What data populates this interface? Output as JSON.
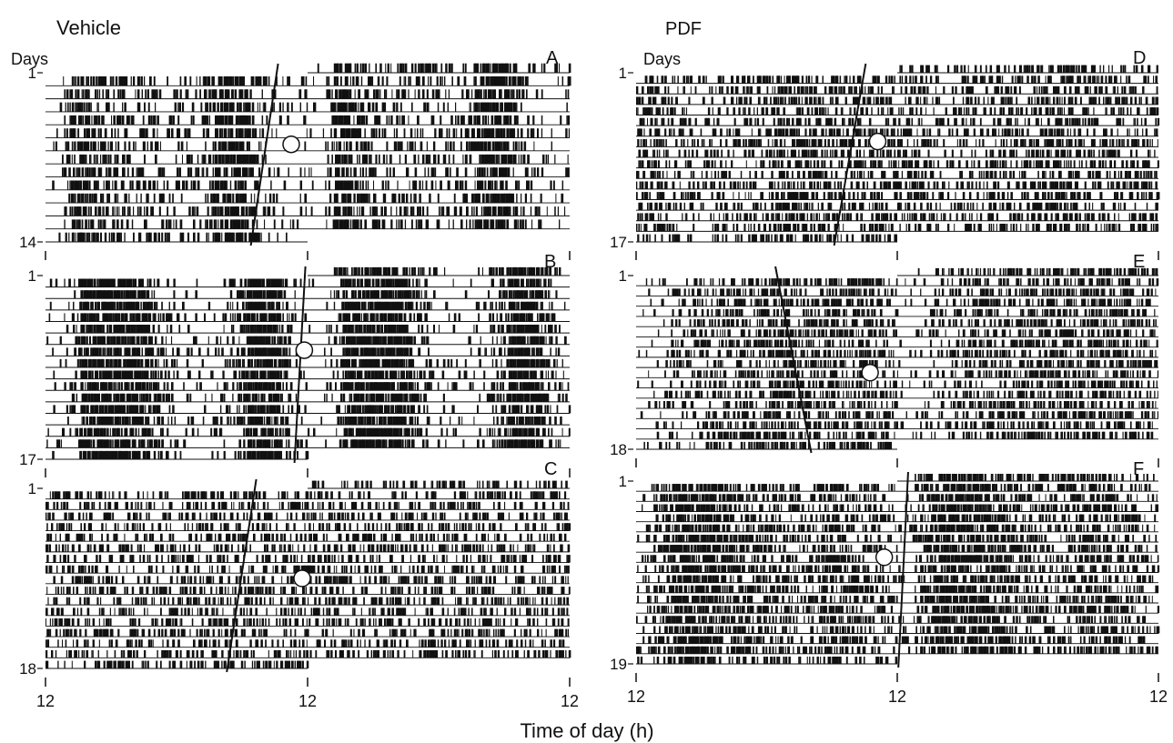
{
  "figure": {
    "left_group_title": "Vehicle",
    "right_group_title": "PDF",
    "x_axis_title": "Time of day (h)",
    "days_label": "Days",
    "x_tick_labels": [
      "12",
      "12",
      "12"
    ]
  },
  "chart_data": [
    {
      "type": "actogram",
      "panel": "A",
      "group": "Vehicle",
      "days": 14,
      "first_day_label": "1",
      "last_day_label": "14",
      "x_ticks": [
        "12",
        "12",
        "12"
      ],
      "onset_line_hours": [
        [
          9.3,
          0
        ],
        [
          6.8,
          13
        ]
      ],
      "marker_day": 5.5,
      "marker_hour": 22.5,
      "density_profile": [
        0.05,
        0.05,
        0.3,
        0.7,
        0.7,
        0.5,
        0.5,
        0.45,
        0.35,
        0.3,
        0.3,
        0.3,
        0.25,
        0.25,
        0.25,
        0.25,
        0.25,
        0.2,
        0.35,
        0.7,
        0.75,
        0.75,
        0.8,
        0.5,
        0.3,
        0.2,
        0.15,
        0.1,
        0.05,
        0.2
      ],
      "color": "#111111"
    },
    {
      "type": "actogram",
      "panel": "B",
      "group": "Vehicle",
      "days": 17,
      "first_day_label": "1",
      "last_day_label": "17",
      "x_ticks": [
        "12",
        "12",
        "12"
      ],
      "onset_line_hours": [
        [
          11.8,
          0
        ],
        [
          10.8,
          16
        ]
      ],
      "marker_day": 6.5,
      "marker_hour": 23.7,
      "density_profile": [
        0.05,
        0.05,
        0.1,
        0.2,
        0.8,
        0.85,
        0.85,
        0.85,
        0.85,
        0.85,
        0.85,
        0.7,
        0.4,
        0.3,
        0.15,
        0.1,
        0.1,
        0.05,
        0.1,
        0.15,
        0.2,
        0.3,
        0.5,
        0.85,
        0.85,
        0.85,
        0.7,
        0.4,
        0.2,
        0.1
      ],
      "color": "#111111"
    },
    {
      "type": "actogram",
      "panel": "C",
      "group": "Vehicle",
      "days": 18,
      "first_day_label": "1",
      "last_day_label": "18",
      "x_ticks": [
        "12",
        "12",
        "12"
      ],
      "onset_line_hours": [
        [
          7.3,
          0
        ],
        [
          4.6,
          17
        ]
      ],
      "marker_day": 8.5,
      "marker_hour": 23.5,
      "density_profile": [
        0.35,
        0.35,
        0.35,
        0.35,
        0.3,
        0.3,
        0.3,
        0.3,
        0.3,
        0.3,
        0.3,
        0.3,
        0.25,
        0.3,
        0.35,
        0.35,
        0.35,
        0.35,
        0.35,
        0.35,
        0.35,
        0.3,
        0.3,
        0.3,
        0.3,
        0.3,
        0.3,
        0.35,
        0.35,
        0.35
      ],
      "color": "#111111"
    },
    {
      "type": "actogram",
      "panel": "D",
      "group": "PDF",
      "days": 17,
      "first_day_label": "1",
      "last_day_label": "17",
      "x_ticks": [
        "12",
        "12",
        "12"
      ],
      "onset_line_hours": [
        [
          9.1,
          0
        ],
        [
          6.2,
          16
        ]
      ],
      "marker_day": 6.5,
      "marker_hour": 22.2,
      "density_profile": [
        0.4,
        0.4,
        0.35,
        0.3,
        0.3,
        0.25,
        0.25,
        0.25,
        0.25,
        0.25,
        0.25,
        0.3,
        0.35,
        0.35,
        0.35,
        0.4,
        0.5,
        0.5,
        0.5,
        0.5,
        0.45,
        0.4,
        0.4,
        0.35,
        0.35,
        0.35,
        0.3,
        0.3,
        0.4,
        0.45
      ],
      "color": "#111111"
    },
    {
      "type": "actogram",
      "panel": "E",
      "group": "PDF",
      "days": 18,
      "first_day_label": "1",
      "last_day_label": "18",
      "x_ticks": [
        "12",
        "12",
        "12"
      ],
      "onset_line_hours": [
        [
          0.8,
          0
        ],
        [
          4.1,
          17
        ]
      ],
      "marker_day": 9.5,
      "marker_hour": 21.5,
      "density_profile": [
        0.05,
        0.05,
        0.1,
        0.15,
        0.2,
        0.2,
        0.25,
        0.3,
        0.4,
        0.4,
        0.4,
        0.4,
        0.4,
        0.4,
        0.45,
        0.45,
        0.45,
        0.45,
        0.45,
        0.45,
        0.45,
        0.45,
        0.45,
        0.45,
        0.45,
        0.45,
        0.45,
        0.4,
        0.35,
        0.3
      ],
      "color": "#111111"
    },
    {
      "type": "actogram",
      "panel": "F",
      "group": "PDF",
      "days": 19,
      "first_day_label": "1",
      "last_day_label": "19",
      "x_ticks": [
        "12",
        "12",
        "12"
      ],
      "onset_line_hours": [
        [
          13.0,
          0
        ],
        [
          12.1,
          18
        ]
      ],
      "marker_day": 7.5,
      "marker_hour": 22.8,
      "density_profile": [
        0.1,
        0.1,
        0.35,
        0.5,
        0.65,
        0.75,
        0.75,
        0.7,
        0.7,
        0.6,
        0.6,
        0.55,
        0.5,
        0.5,
        0.45,
        0.4,
        0.4,
        0.35,
        0.3,
        0.3,
        0.35,
        0.45,
        0.6,
        0.55,
        0.5,
        0.4,
        0.35,
        0.3,
        0.25,
        0.2
      ],
      "color": "#111111"
    }
  ]
}
